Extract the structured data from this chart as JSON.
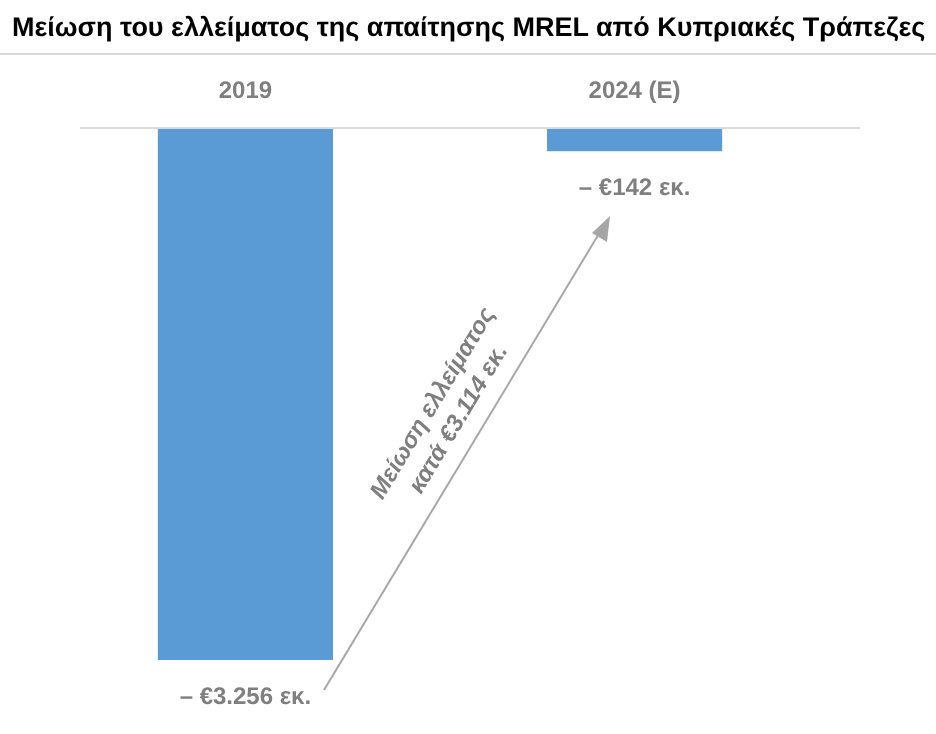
{
  "chart_data": {
    "type": "bar",
    "title": "Μείωση του ελλείματος της απαίτησης MREL από Κυπριακές Τράπεζες",
    "categories": [
      "2019",
      "2024 (E)"
    ],
    "values": [
      -3256,
      -142
    ],
    "color": "#5b9bd5",
    "value_labels": [
      "– €3.256 εκ.",
      "– €142 εκ."
    ],
    "annotations": [
      "Μείωση ελλείματος\nκατά €3.114 εκ."
    ]
  }
}
